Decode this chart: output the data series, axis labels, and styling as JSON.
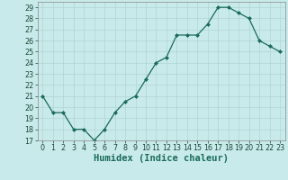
{
  "x": [
    0,
    1,
    2,
    3,
    4,
    5,
    6,
    7,
    8,
    9,
    10,
    11,
    12,
    13,
    14,
    15,
    16,
    17,
    18,
    19,
    20,
    21,
    22,
    23
  ],
  "y": [
    21,
    19.5,
    19.5,
    18,
    18,
    17,
    18,
    19.5,
    20.5,
    21,
    22.5,
    24,
    24.5,
    26.5,
    26.5,
    26.5,
    27.5,
    29,
    29,
    28.5,
    28,
    26,
    25.5,
    25
  ],
  "line_color": "#1a6b5a",
  "marker": "D",
  "marker_size": 2.0,
  "linewidth": 0.9,
  "bg_color": "#c8eaea",
  "grid_color": "#b0d4d4",
  "xlabel": "Humidex (Indice chaleur)",
  "ylim": [
    17,
    29.5
  ],
  "xlim": [
    -0.5,
    23.5
  ],
  "yticks": [
    17,
    18,
    19,
    20,
    21,
    22,
    23,
    24,
    25,
    26,
    27,
    28,
    29
  ],
  "xticks": [
    0,
    1,
    2,
    3,
    4,
    5,
    6,
    7,
    8,
    9,
    10,
    11,
    12,
    13,
    14,
    15,
    16,
    17,
    18,
    19,
    20,
    21,
    22,
    23
  ],
  "xlabel_fontsize": 7.5,
  "tick_fontsize": 5.8
}
